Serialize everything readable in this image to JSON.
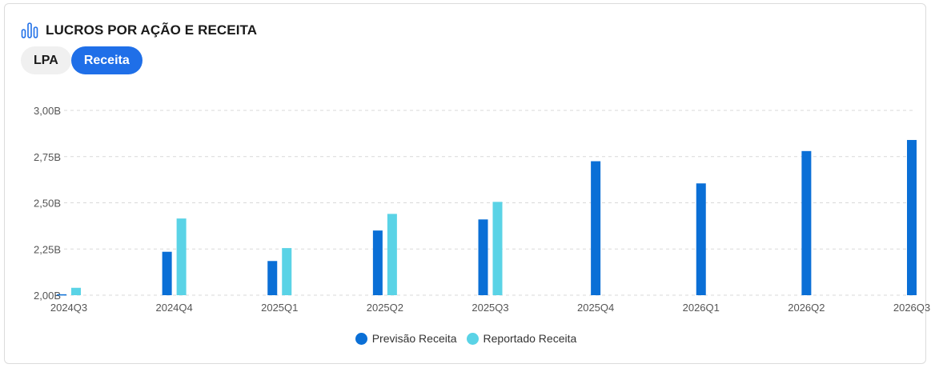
{
  "header": {
    "title": "LUCROS POR AÇÃO E RECEITA",
    "icon": "bar-chart-icon",
    "accent": "#1f6fe8"
  },
  "tabs": [
    {
      "label": "LPA",
      "active": false
    },
    {
      "label": "Receita",
      "active": true
    }
  ],
  "chart_data": {
    "type": "bar",
    "categories": [
      "2024Q3",
      "2024Q4",
      "2025Q1",
      "2025Q2",
      "2025Q3",
      "2025Q4",
      "2026Q1",
      "2026Q2",
      "2026Q3"
    ],
    "series": [
      {
        "name": "Previsão Receita",
        "color": "#0a6fd6",
        "values": [
          2.005,
          2.235,
          2.185,
          2.35,
          2.41,
          2.725,
          2.605,
          2.78,
          2.84
        ]
      },
      {
        "name": "Reportado Receita",
        "color": "#5ad3e6",
        "values": [
          2.04,
          2.415,
          2.255,
          2.44,
          2.505,
          null,
          null,
          null,
          null
        ]
      }
    ],
    "y_ticks": [
      "2,00B",
      "2,25B",
      "2,50B",
      "2,75B",
      "3,00B"
    ],
    "y_tick_values": [
      2.0,
      2.25,
      2.5,
      2.75,
      3.0
    ],
    "ylim": [
      2.0,
      3.0
    ],
    "grid": true,
    "legend_position": "bottom-center"
  }
}
